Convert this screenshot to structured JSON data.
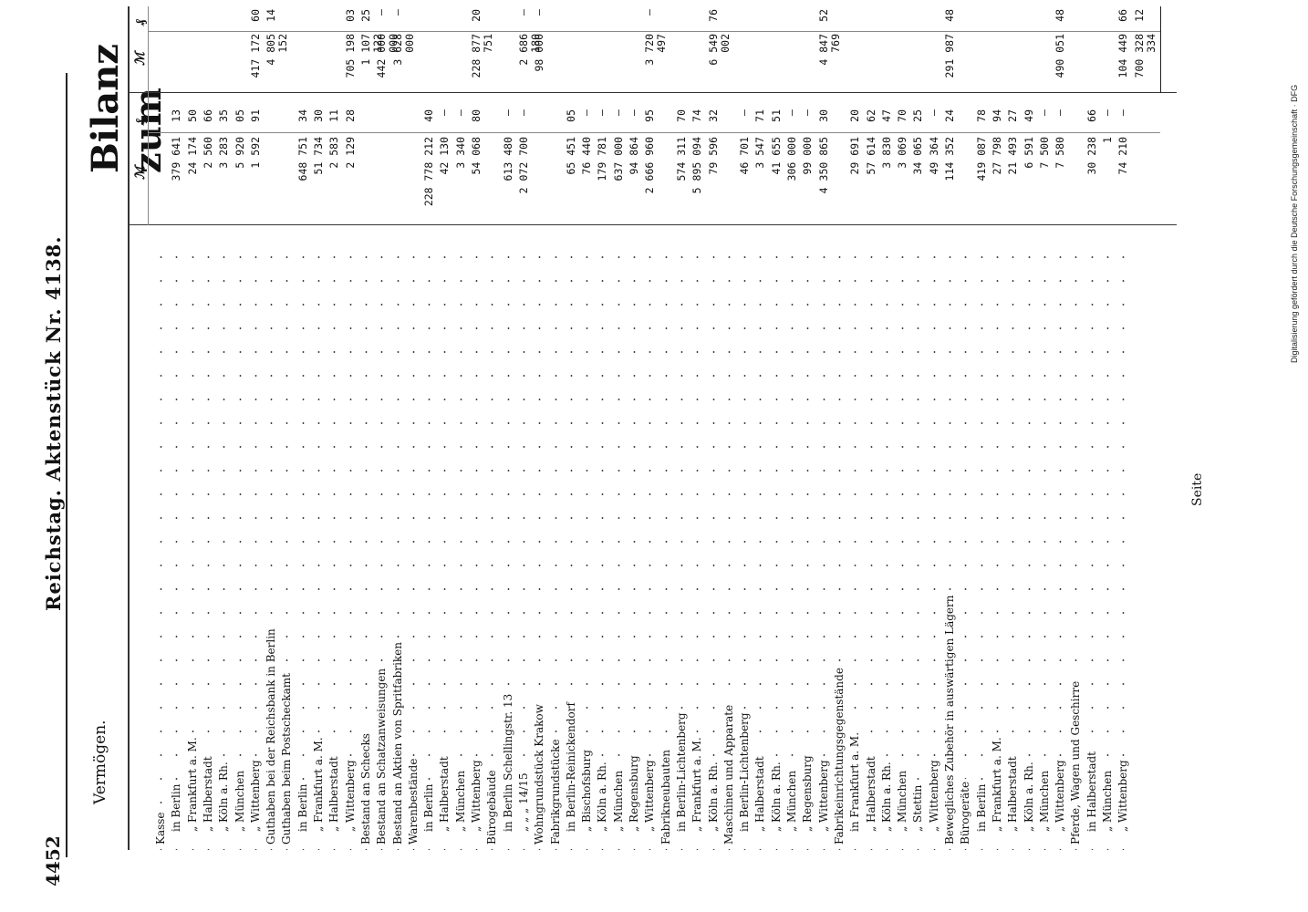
{
  "header": {
    "page_number": "4452",
    "title": "Reichstag.   Aktenstück Nr. 4138.",
    "section": "Vermögen.",
    "bilanz": "Bilanz zum"
  },
  "columns": {
    "mark": "ℳ",
    "pf": "₰"
  },
  "footer": {
    "seite": "Seite"
  },
  "side_note": "Digitalisierung gefördert durch die Deutsche Forschungsgemeinschaft · DFG",
  "rows": [
    {
      "label": "Kasse",
      "m1": "",
      "p1": "",
      "m2": "",
      "p2": ""
    },
    {
      "label": "in Berlin",
      "m1": "379 641",
      "p1": "13",
      "m2": "",
      "p2": ""
    },
    {
      "label": "„ Frankfurt a. M.",
      "m1": "24 174",
      "p1": "50",
      "m2": "",
      "p2": ""
    },
    {
      "label": "„ Halberstadt",
      "m1": "2 560",
      "p1": "66",
      "m2": "",
      "p2": ""
    },
    {
      "label": "„ Köln a. Rh.",
      "m1": "3 283",
      "p1": "35",
      "m2": "",
      "p2": ""
    },
    {
      "label": "„ München",
      "m1": "5 920",
      "p1": "05",
      "m2": "",
      "p2": ""
    },
    {
      "label": "„ Wittenberg",
      "m1": "1 592",
      "p1": "91",
      "m2": "417 172",
      "p2": "60"
    },
    {
      "label": "Guthaben bei der Reichsbank in Berlin",
      "m1": "",
      "p1": "",
      "m2": "4 805 152",
      "p2": "14"
    },
    {
      "label": "Guthaben beim Postscheckamt",
      "m1": "",
      "p1": "",
      "m2": "",
      "p2": ""
    },
    {
      "label": "in Berlin",
      "m1": "648 751",
      "p1": "34",
      "m2": "",
      "p2": ""
    },
    {
      "label": "„ Frankfurt a. M.",
      "m1": "51 734",
      "p1": "30",
      "m2": "",
      "p2": ""
    },
    {
      "label": "„ Halberstadt",
      "m1": "2 583",
      "p1": "11",
      "m2": "",
      "p2": ""
    },
    {
      "label": "„ Wittenberg",
      "m1": "2 129",
      "p1": "28",
      "m2": "705 198",
      "p2": "03"
    },
    {
      "label": "Bestand an Schecks",
      "m1": "",
      "p1": "",
      "m2": "1 107 122",
      "p2": "25"
    },
    {
      "label": "Bestand an Schatzanweisungen",
      "m1": "",
      "p1": "",
      "m2": "442 000 000",
      "p2": "—"
    },
    {
      "label": "Bestand an Aktien von Spritfabriken",
      "m1": "",
      "p1": "",
      "m2": "3 628 000",
      "p2": "—"
    },
    {
      "label": "Warenbestände",
      "m1": "",
      "p1": "",
      "m2": "",
      "p2": ""
    },
    {
      "label": "in Berlin",
      "m1": "228 778 212",
      "p1": "40",
      "m2": "",
      "p2": ""
    },
    {
      "label": "„ Halberstadt",
      "m1": "42 130",
      "p1": "—",
      "m2": "",
      "p2": ""
    },
    {
      "label": "„ München",
      "m1": "3 340",
      "p1": "—",
      "m2": "",
      "p2": ""
    },
    {
      "label": "„ Wittenberg",
      "m1": "54 068",
      "p1": "80",
      "m2": "228 877 751",
      "p2": "20"
    },
    {
      "label": "Bürogebäude",
      "m1": "",
      "p1": "",
      "m2": "",
      "p2": ""
    },
    {
      "label": "in Berlin Schellingstr. 13",
      "m1": "613 480",
      "p1": "—",
      "m2": "",
      "p2": ""
    },
    {
      "label": "„ „ „ 14/15",
      "m1": "2 072 700",
      "p1": "—",
      "m2": "2 686 180",
      "p2": "—"
    },
    {
      "label": "Wohngrundstück Krakow",
      "m1": "",
      "p1": "",
      "m2": "98 000",
      "p2": "—"
    },
    {
      "label": "Fabrikgrundstücke",
      "m1": "",
      "p1": "",
      "m2": "",
      "p2": ""
    },
    {
      "label": "in Berlin-Reinickendorf",
      "m1": "65 451",
      "p1": "05",
      "m2": "",
      "p2": ""
    },
    {
      "label": "„ Bischofsburg",
      "m1": "76 440",
      "p1": "—",
      "m2": "",
      "p2": ""
    },
    {
      "label": "„ Köln a. Rh.",
      "m1": "179 781",
      "p1": "—",
      "m2": "",
      "p2": ""
    },
    {
      "label": "„ München",
      "m1": "637 000",
      "p1": "—",
      "m2": "",
      "p2": ""
    },
    {
      "label": "„ Regensburg",
      "m1": "94 864",
      "p1": "—",
      "m2": "",
      "p2": ""
    },
    {
      "label": "„ Wittenberg",
      "m1": "2 666 960",
      "p1": "95",
      "m2": "3 720 497",
      "p2": "—"
    },
    {
      "label": "Fabrikneubauten",
      "m1": "",
      "p1": "",
      "m2": "",
      "p2": ""
    },
    {
      "label": "in Berlin-Lichtenberg",
      "m1": "574 311",
      "p1": "70",
      "m2": "",
      "p2": ""
    },
    {
      "label": "„ Frankfurt a. M.",
      "m1": "5 895 094",
      "p1": "74",
      "m2": "",
      "p2": ""
    },
    {
      "label": "„ Köln a. Rh.",
      "m1": "79 596",
      "p1": "32",
      "m2": "6 549 002",
      "p2": "76"
    },
    {
      "label": "Maschinen und Apparate",
      "m1": "",
      "p1": "",
      "m2": "",
      "p2": ""
    },
    {
      "label": "in Berlin-Lichtenberg",
      "m1": "46 701",
      "p1": "—",
      "m2": "",
      "p2": ""
    },
    {
      "label": "„ Halberstadt",
      "m1": "3 547",
      "p1": "71",
      "m2": "",
      "p2": ""
    },
    {
      "label": "„ Köln a. Rh.",
      "m1": "41 655",
      "p1": "51",
      "m2": "",
      "p2": ""
    },
    {
      "label": "„ München",
      "m1": "306 000",
      "p1": "—",
      "m2": "",
      "p2": ""
    },
    {
      "label": "„ Regensburg",
      "m1": "99 000",
      "p1": "—",
      "m2": "",
      "p2": ""
    },
    {
      "label": "„ Wittenberg",
      "m1": "4 350 865",
      "p1": "30",
      "m2": "4 847 769",
      "p2": "52"
    },
    {
      "label": "Fabrikeinrichtungsgegenstände",
      "m1": "",
      "p1": "",
      "m2": "",
      "p2": ""
    },
    {
      "label": "in Frankfurt a. M.",
      "m1": "29 691",
      "p1": "20",
      "m2": "",
      "p2": ""
    },
    {
      "label": "„ Halberstadt",
      "m1": "57 614",
      "p1": "62",
      "m2": "",
      "p2": ""
    },
    {
      "label": "„ Köln a. Rh.",
      "m1": "3 830",
      "p1": "47",
      "m2": "",
      "p2": ""
    },
    {
      "label": "„ München",
      "m1": "3 069",
      "p1": "70",
      "m2": "",
      "p2": ""
    },
    {
      "label": "„ Stettin",
      "m1": "34 065",
      "p1": "25",
      "m2": "",
      "p2": ""
    },
    {
      "label": "„ Wittenberg",
      "m1": "49 364",
      "p1": "—",
      "m2": "",
      "p2": ""
    },
    {
      "label": "Bewegliches Zubehör in auswärtigen Lägern",
      "m1": "114 352",
      "p1": "24",
      "m2": "291 987",
      "p2": "48"
    },
    {
      "label": "Bürogeräte",
      "m1": "",
      "p1": "",
      "m2": "",
      "p2": ""
    },
    {
      "label": "in Berlin",
      "m1": "419 087",
      "p1": "78",
      "m2": "",
      "p2": ""
    },
    {
      "label": "„ Frankfurt a. M.",
      "m1": "27 798",
      "p1": "94",
      "m2": "",
      "p2": ""
    },
    {
      "label": "„ Halberstadt",
      "m1": "21 493",
      "p1": "27",
      "m2": "",
      "p2": ""
    },
    {
      "label": "„ Köln a. Rh.",
      "m1": "6 591",
      "p1": "49",
      "m2": "",
      "p2": ""
    },
    {
      "label": "„ München",
      "m1": "7 500",
      "p1": "—",
      "m2": "",
      "p2": ""
    },
    {
      "label": "„ Wittenberg",
      "m1": "7 580",
      "p1": "—",
      "m2": "490 051",
      "p2": "48"
    },
    {
      "label": "Pferde, Wagen und Geschirre",
      "m1": "",
      "p1": "",
      "m2": "",
      "p2": ""
    },
    {
      "label": "in Halberstadt",
      "m1": "30 238",
      "p1": "66",
      "m2": "",
      "p2": ""
    },
    {
      "label": "„ München",
      "m1": "1",
      "p1": "—",
      "m2": "",
      "p2": ""
    },
    {
      "label": "„ Wittenberg",
      "m1": "74 210",
      "p1": "—",
      "m2": "104 449",
      "p2": "66"
    },
    {
      "label": "",
      "m1": "",
      "p1": "",
      "m2": "700 328 334",
      "p2": "12"
    }
  ]
}
